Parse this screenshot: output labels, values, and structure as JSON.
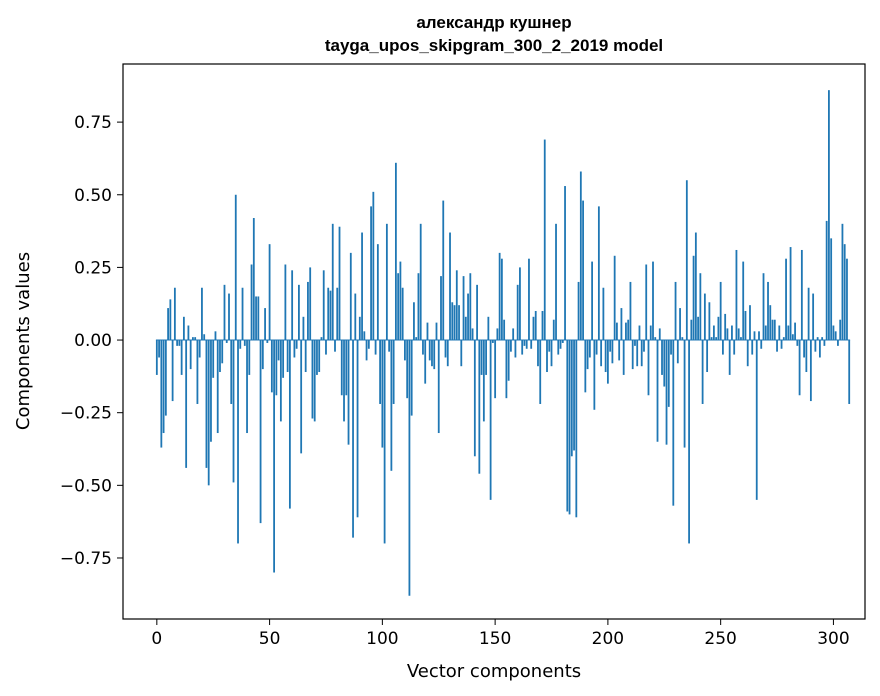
{
  "chart_data": {
    "type": "bar",
    "title": "александр кушнер",
    "subtitle": "tayga_upos_skipgram_300_2_2019 model",
    "xlabel": "Vector components",
    "ylabel": "Components values",
    "xlim": [
      -15,
      314
    ],
    "ylim": [
      -0.96,
      0.95
    ],
    "xticks": [
      0,
      50,
      100,
      150,
      200,
      250,
      300
    ],
    "xtick_labels": [
      "0",
      "50",
      "100",
      "150",
      "200",
      "250",
      "300"
    ],
    "yticks": [
      -0.75,
      -0.5,
      -0.25,
      0.0,
      0.25,
      0.5,
      0.75
    ],
    "ytick_labels": [
      "−0.75",
      "−0.50",
      "−0.25",
      "0.00",
      "0.25",
      "0.50",
      "0.75"
    ],
    "grid": false,
    "bar_color": "#1f77b4",
    "series": [
      {
        "x_start": 0,
        "values": [
          -0.12,
          -0.06,
          -0.37,
          -0.32,
          -0.26,
          0.11,
          0.14,
          -0.21,
          0.18,
          -0.02,
          -0.02,
          -0.12,
          0.08,
          -0.44,
          0.05,
          -0.1,
          0.01,
          0.01,
          -0.22,
          -0.06,
          0.18,
          0.02,
          -0.44,
          -0.5,
          -0.35,
          -0.13,
          0.03,
          -0.32,
          -0.11,
          -0.08,
          0.19,
          -0.01,
          0.16,
          -0.22,
          -0.49,
          0.5,
          -0.7,
          -0.03,
          0.18,
          -0.02,
          -0.32,
          -0.12,
          0.26,
          0.42,
          0.15,
          0.15,
          -0.63,
          -0.1,
          0.11,
          -0.01,
          0.33,
          -0.18,
          -0.8,
          -0.19,
          -0.07,
          -0.28,
          -0.13,
          0.26,
          -0.11,
          -0.58,
          0.24,
          -0.06,
          -0.03,
          0.19,
          -0.39,
          0.08,
          -0.11,
          0.2,
          0.25,
          -0.27,
          -0.28,
          -0.12,
          -0.11,
          0.01,
          0.24,
          -0.05,
          0.18,
          0.17,
          0.4,
          -0.04,
          0.18,
          0.39,
          -0.19,
          -0.28,
          -0.19,
          -0.36,
          0.3,
          -0.68,
          0.16,
          -0.61,
          0.08,
          0.37,
          0.03,
          -0.07,
          -0.03,
          0.46,
          0.51,
          -0.05,
          0.33,
          -0.22,
          -0.37,
          -0.7,
          0.4,
          -0.04,
          -0.45,
          -0.22,
          0.61,
          0.23,
          0.27,
          0.18,
          -0.07,
          -0.2,
          -0.88,
          -0.26,
          0.13,
          0.01,
          0.23,
          0.4,
          -0.05,
          -0.15,
          0.06,
          -0.07,
          -0.09,
          -0.1,
          0.06,
          -0.32,
          0.22,
          0.48,
          -0.06,
          -0.09,
          0.37,
          0.13,
          0.12,
          0.24,
          0.12,
          -0.09,
          0.22,
          0.08,
          0.16,
          0.23,
          0.04,
          -0.4,
          0.19,
          -0.46,
          -0.12,
          -0.28,
          -0.12,
          0.08,
          -0.55,
          -0.01,
          -0.2,
          0.04,
          0.3,
          0.28,
          0.07,
          -0.2,
          -0.14,
          -0.04,
          0.04,
          -0.06,
          0.19,
          0.25,
          -0.05,
          -0.02,
          -0.03,
          0.28,
          -0.03,
          0.08,
          0.1,
          -0.09,
          -0.22,
          0.1,
          0.69,
          -0.11,
          -0.04,
          -0.09,
          0.07,
          0.4,
          -0.05,
          -0.03,
          -0.01,
          0.53,
          -0.59,
          -0.6,
          -0.4,
          -0.38,
          -0.61,
          0.2,
          0.58,
          0.48,
          -0.18,
          -0.1,
          -0.06,
          0.27,
          -0.24,
          -0.05,
          0.46,
          -0.09,
          0.18,
          -0.11,
          -0.15,
          -0.04,
          -0.08,
          0.29,
          0.06,
          -0.07,
          0.11,
          -0.12,
          0.06,
          0.07,
          0.2,
          -0.1,
          -0.02,
          -0.09,
          0.05,
          -0.09,
          -0.04,
          0.26,
          -0.19,
          0.05,
          0.27,
          0.01,
          -0.35,
          0.04,
          -0.12,
          -0.16,
          -0.36,
          -0.23,
          -0.05,
          -0.57,
          0.2,
          -0.08,
          0.11,
          0.01,
          -0.37,
          0.55,
          -0.7,
          0.07,
          0.29,
          0.37,
          0.08,
          0.23,
          -0.22,
          0.16,
          -0.11,
          0.13,
          0.01,
          0.05,
          0.01,
          0.08,
          0.2,
          -0.05,
          0.09,
          0.04,
          -0.12,
          0.05,
          -0.05,
          0.31,
          0.04,
          0.01,
          0.27,
          0.1,
          -0.09,
          0.12,
          -0.05,
          0.03,
          -0.55,
          0.03,
          -0.03,
          0.23,
          0.05,
          0.2,
          0.12,
          0.07,
          0.07,
          -0.04,
          0.05,
          -0.03,
          0.01,
          0.28,
          0.05,
          0.32,
          0.02,
          0.06,
          -0.02,
          -0.19,
          0.31,
          -0.06,
          -0.11,
          0.18,
          -0.21,
          0.16,
          -0.04,
          0.01,
          -0.06,
          0.01,
          -0.02,
          0.41,
          0.86,
          0.35,
          0.05,
          0.03,
          -0.02,
          0.07,
          0.4,
          0.33,
          0.28,
          -0.22
        ]
      }
    ]
  }
}
